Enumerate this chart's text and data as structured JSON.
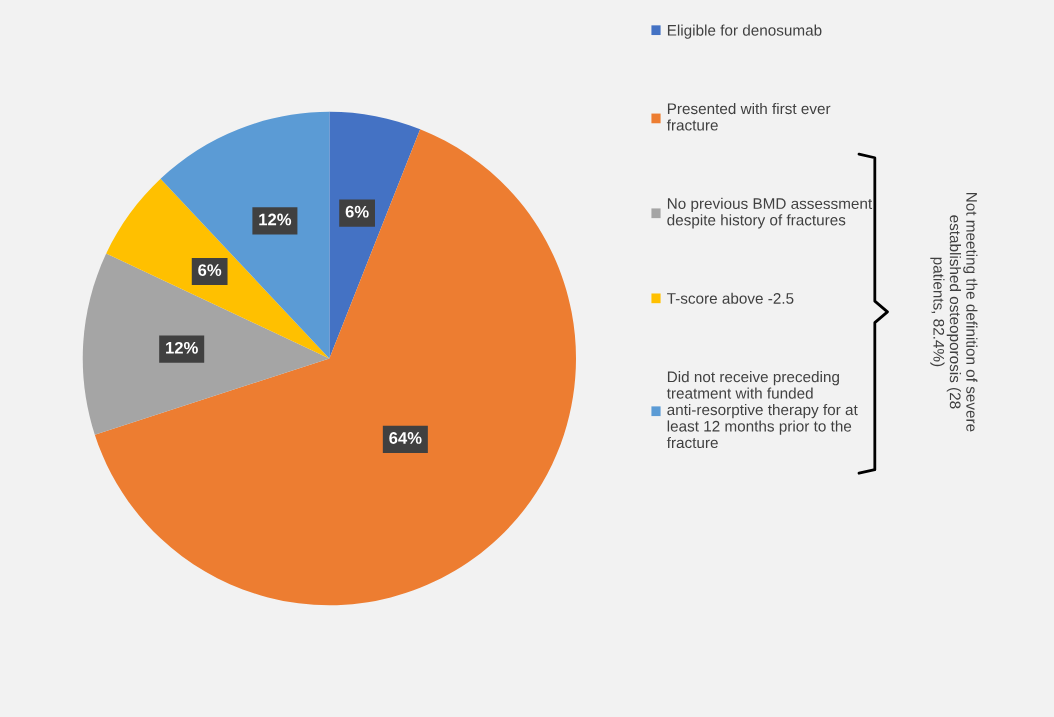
{
  "chart_data": {
    "type": "pie",
    "categories": [
      "Eligible for denosumab",
      "Presented with first ever fracture",
      "No previous BMD assessment despite history of fractures",
      "T-score above -2.5",
      "Did not receive preceding treatment with funded anti-resorptive therapy for at least 12 months prior to the fracture"
    ],
    "values": [
      6,
      64,
      12,
      6,
      12
    ],
    "colors": [
      "#4472c4",
      "#ed7d31",
      "#a5a5a5",
      "#ffc000",
      "#5b9bd5"
    ],
    "value_labels": [
      "6%",
      "64%",
      "12%",
      "6%",
      "12%"
    ],
    "legend": "right",
    "annotations": [
      "Not meeting the definition of severe established osteoporosis (28 patients, 82.4%)"
    ]
  }
}
